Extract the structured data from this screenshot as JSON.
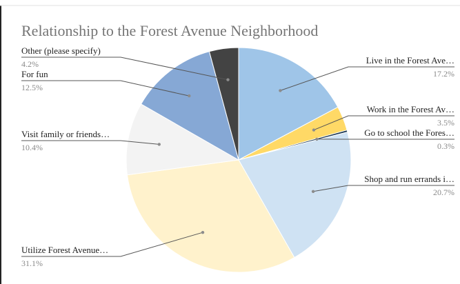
{
  "chart_data": {
    "type": "pie",
    "title": "Relationship to the Forest Avenue Neighborhood",
    "start_angle_deg": 0,
    "direction": "clockwise",
    "slices": [
      {
        "label": "Live in the Forest Ave…",
        "value": 17.2,
        "pct_label": "17.2%",
        "color": "#9fc5e8",
        "side": "right"
      },
      {
        "label": "Work in the Forest Av…",
        "value": 3.5,
        "pct_label": "3.5%",
        "color": "#ffd966",
        "side": "right"
      },
      {
        "label": "Go to school the Fores…",
        "value": 0.3,
        "pct_label": "0.3%",
        "color": "#1f3b57",
        "side": "right"
      },
      {
        "label": "Shop and run errands i…",
        "value": 20.7,
        "pct_label": "20.7%",
        "color": "#cfe2f3",
        "side": "right"
      },
      {
        "label": "Utilize Forest Avenue…",
        "value": 31.1,
        "pct_label": "31.1%",
        "color": "#fff2cc",
        "side": "left"
      },
      {
        "label": "Visit family or friends…",
        "value": 10.4,
        "pct_label": "10.4%",
        "color": "#f3f3f3",
        "side": "left"
      },
      {
        "label": "For fun",
        "value": 12.5,
        "pct_label": "12.5%",
        "color": "#86a8d5",
        "side": "left"
      },
      {
        "label": "Other (please specify)",
        "value": 4.2,
        "pct_label": "4.2%",
        "color": "#434343",
        "side": "left"
      }
    ]
  }
}
